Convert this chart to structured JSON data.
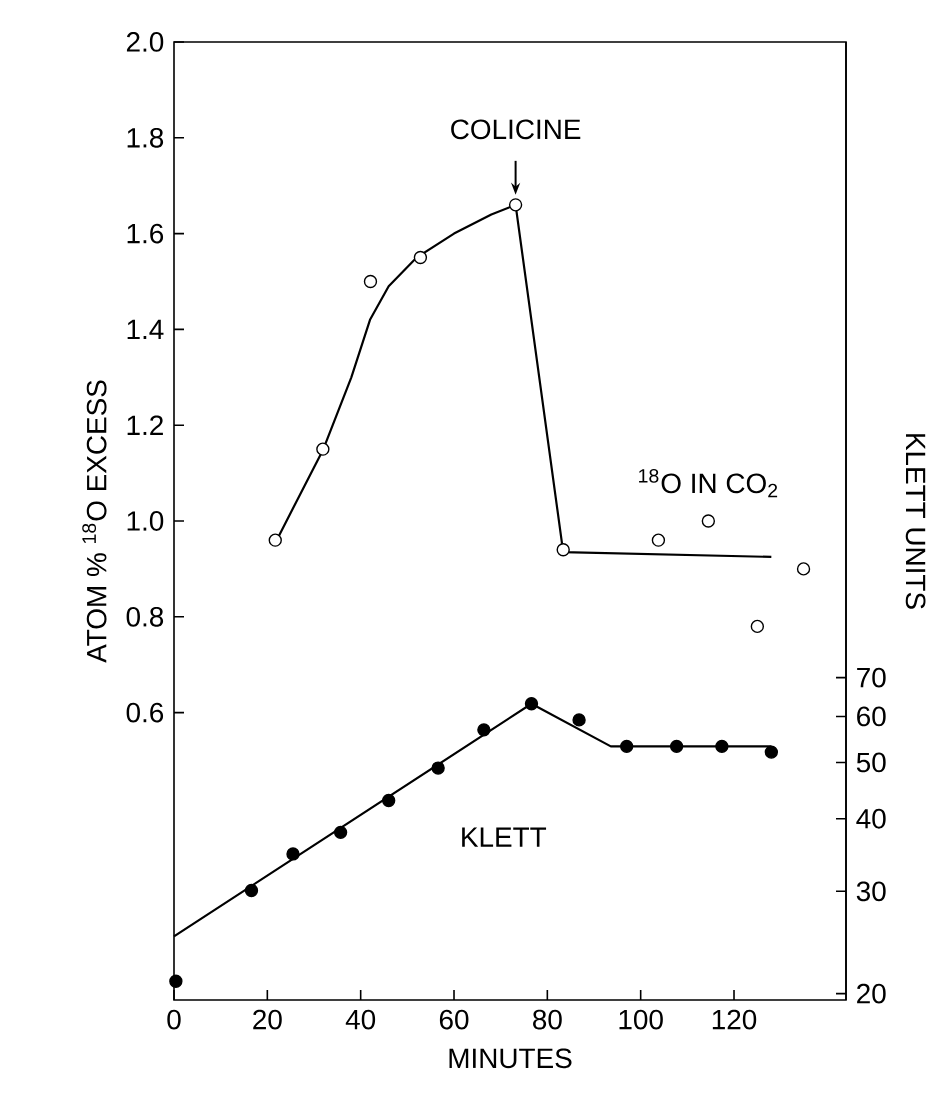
{
  "chart_data": {
    "type": "scatter",
    "xlabel": "MINUTES",
    "ylabel": "ATOM % $^{18}$O EXCESS",
    "y2label": "KLETT UNITS",
    "xlim": [
      0,
      144
    ],
    "xticks": [
      0,
      20,
      40,
      60,
      80,
      100,
      120
    ],
    "ylim": [
      0,
      2.0
    ],
    "yticks": [
      {
        "value": 0.6,
        "label": "0.6"
      },
      {
        "value": 0.8,
        "label": "0.8"
      },
      {
        "value": 1.0,
        "label": "1.0"
      },
      {
        "value": 1.2,
        "label": "1.2"
      },
      {
        "value": 1.4,
        "label": "1.4"
      },
      {
        "value": 1.6,
        "label": "1.6"
      },
      {
        "value": 1.8,
        "label": "1.8"
      },
      {
        "value": 2.0,
        "label": "2.0"
      }
    ],
    "y2lim": [
      19.5,
      870
    ],
    "y2ticks": [
      20,
      30,
      40,
      50,
      60,
      70
    ],
    "log": "y2",
    "annotations": [
      {
        "text": "COLICINE",
        "x": 73.2,
        "y": 1.66
      }
    ],
    "series": [
      {
        "name": "$^{18}$O IN CO$_{2}$",
        "axis": "y",
        "marker": "circle",
        "color": "#000000",
        "x": [
          21.7,
          31.9,
          42.1,
          52.8,
          73.2,
          83.4,
          103.8,
          114.5,
          125,
          134.9
        ],
        "values": [
          0.96,
          1.15,
          1.5,
          1.55,
          1.66,
          0.94,
          0.96,
          1.0,
          0.78,
          0.9
        ]
      },
      {
        "type": "line",
        "axis": "y",
        "marker": "none",
        "color": "#000000",
        "x": [
          22,
          32,
          38,
          42,
          46,
          52,
          60,
          68,
          73.2,
          83.4,
          128
        ],
        "values": [
          0.96,
          1.15,
          1.3,
          1.42,
          1.49,
          1.55,
          1.6,
          1.64,
          1.66,
          0.935,
          0.925
        ]
      },
      {
        "name": "KLETT",
        "axis": "y2",
        "marker": "circle",
        "color": "#000000",
        "x": [
          0.4,
          16.6,
          25.5,
          35.7,
          46,
          56.6,
          66.4,
          76.6,
          86.8,
          97,
          107.7,
          117.4,
          128
        ],
        "values": [
          21,
          30.1,
          34.8,
          37.9,
          43,
          48.9,
          56.9,
          63.1,
          59.2,
          53.3,
          53.3,
          53.3,
          52.1
        ]
      },
      {
        "type": "line",
        "axis": "y2",
        "marker": "none",
        "color": "#000000",
        "x": [
          0,
          76.6,
          93.6,
          128
        ],
        "values": [
          25.1,
          63.1,
          53.3,
          53.3
        ]
      }
    ]
  }
}
